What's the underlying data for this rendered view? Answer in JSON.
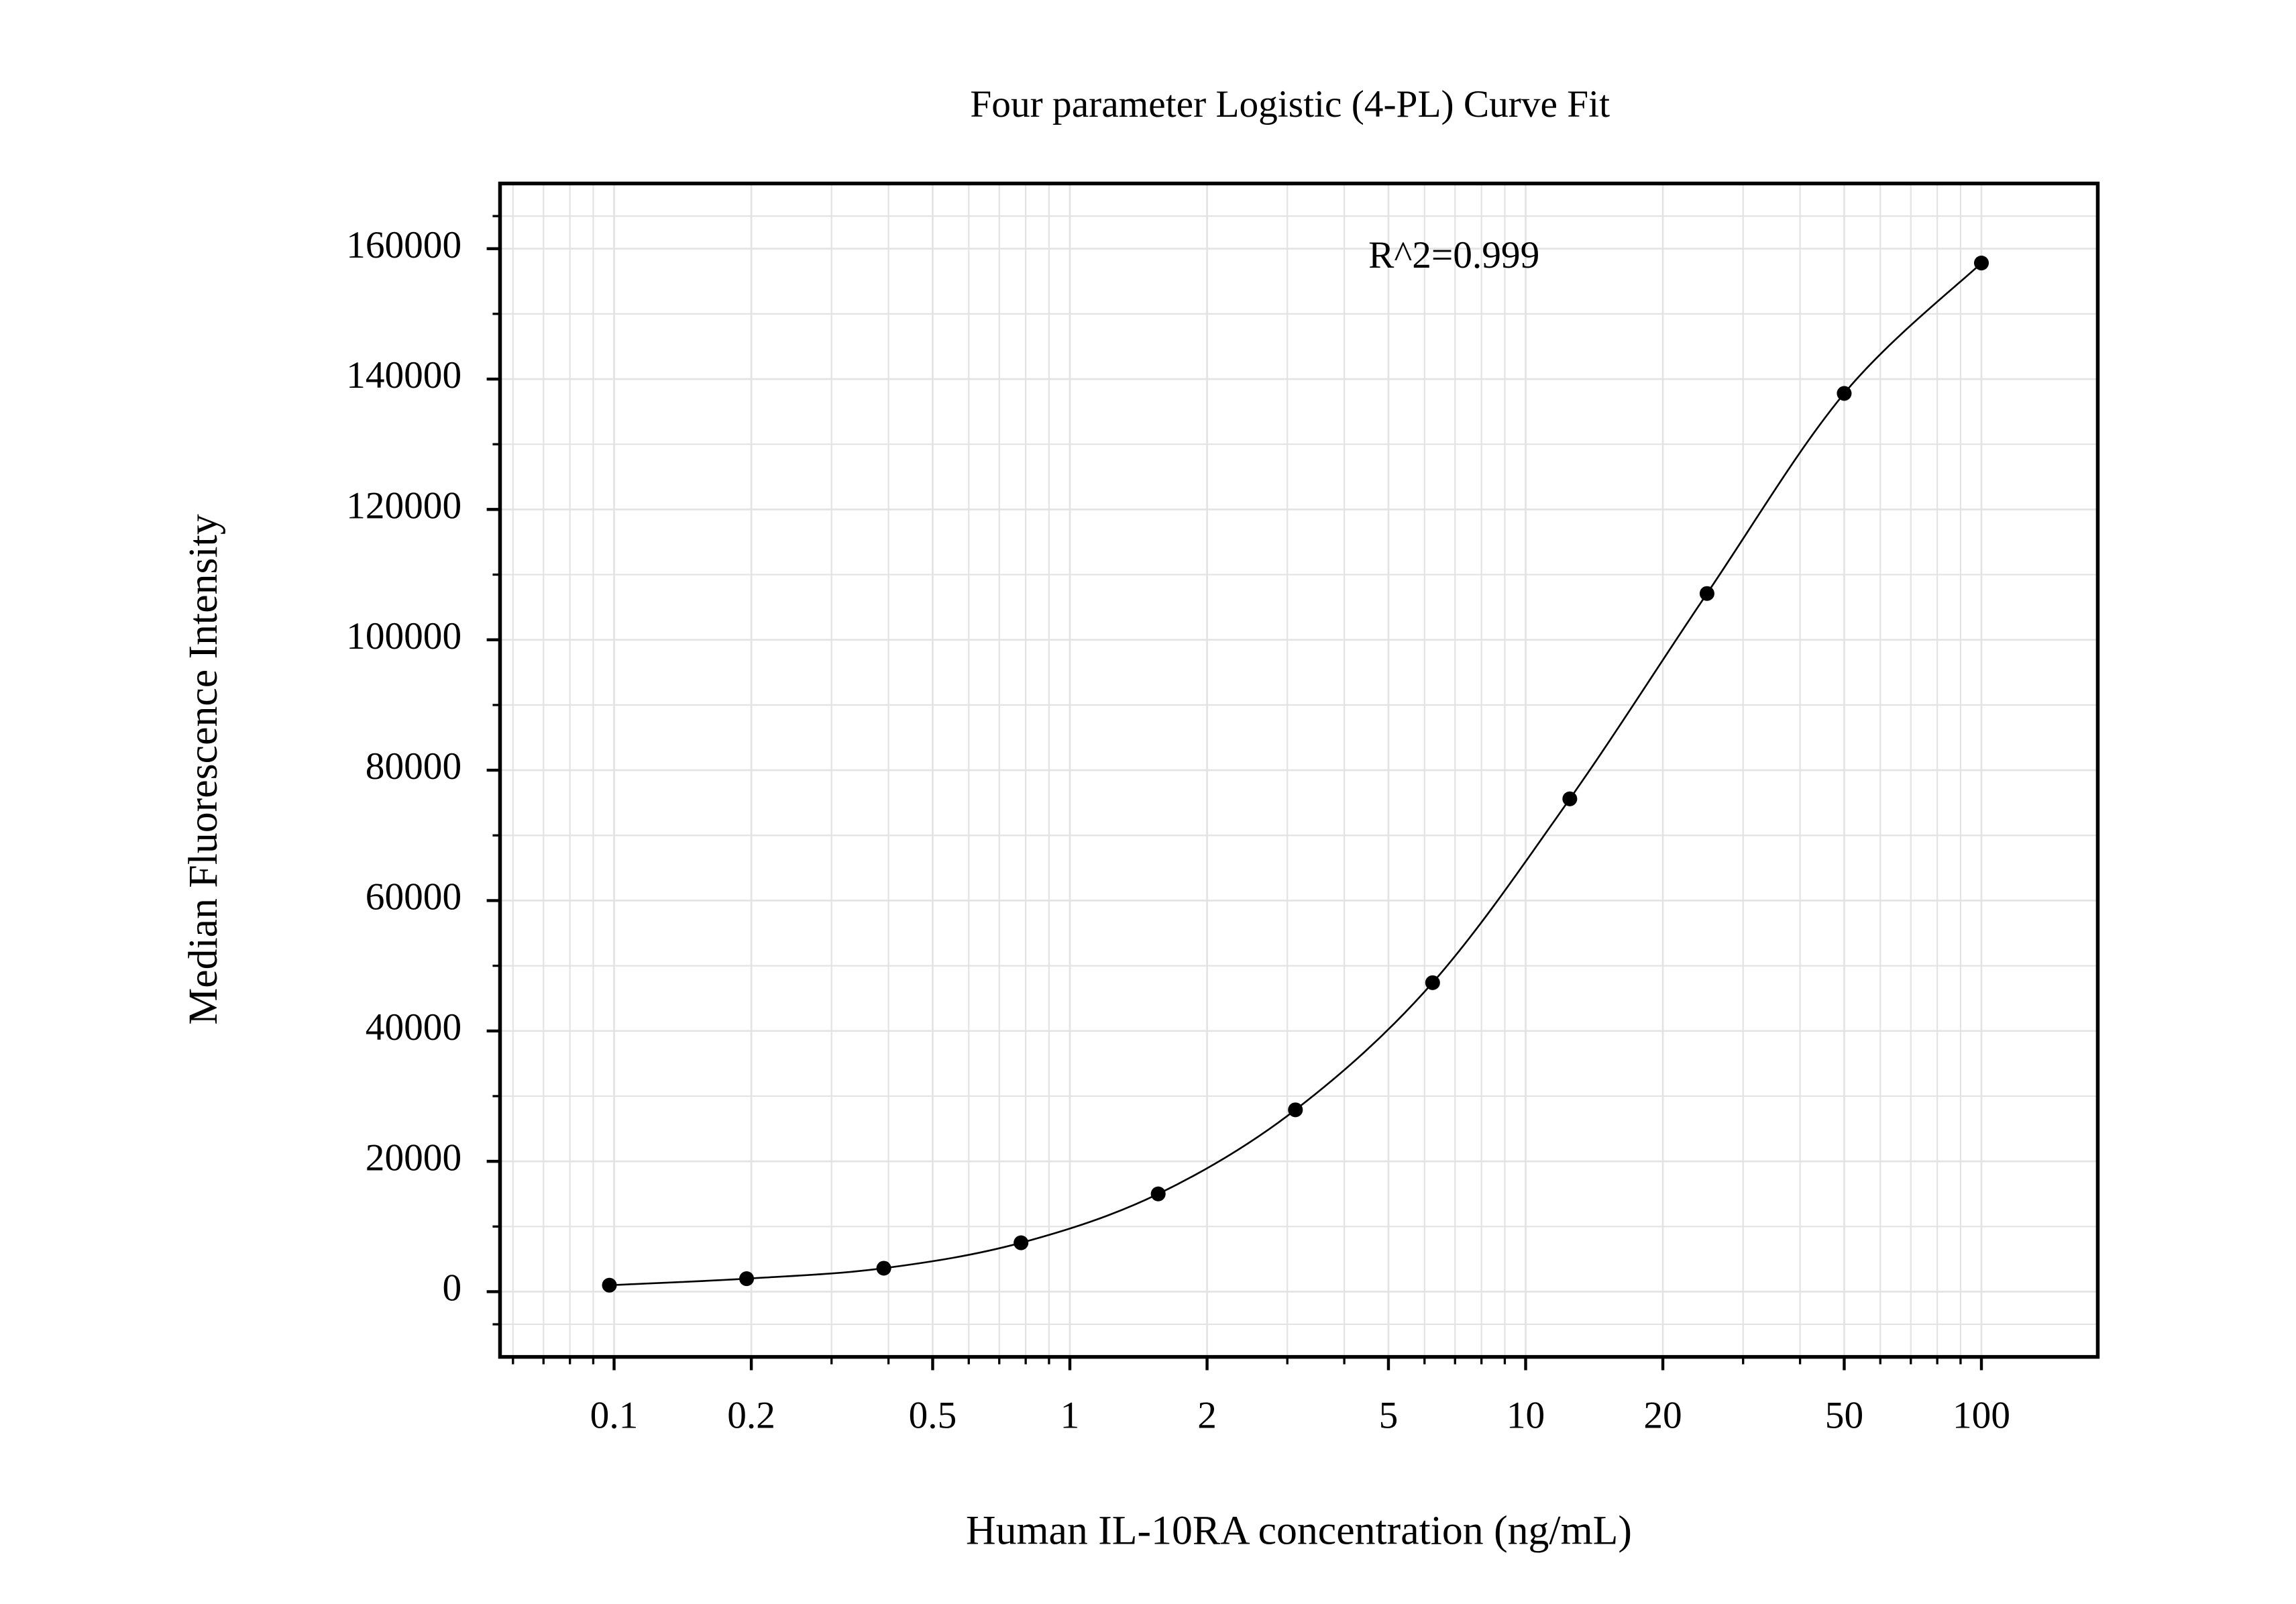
{
  "chart_data": {
    "type": "scatter",
    "title": "Four parameter Logistic (4-PL) Curve Fit",
    "x_label": "Human IL-10RA concentration (ng/mL)",
    "y_label": "Median Fluorescence Intensity",
    "annotation": "R^2=0.999",
    "x_log": true,
    "grid": true,
    "color": "#000000",
    "x": [
      0.09765625,
      0.1953125,
      0.390625,
      0.78125,
      1.5625,
      3.125,
      6.25,
      12.5,
      25,
      50,
      100
    ],
    "values": [
      1000,
      2000,
      3600,
      7500,
      15000,
      27900,
      47400,
      75600,
      107100,
      137800,
      157800
    ],
    "xlim": [
      0.0562,
      180
    ],
    "ylim": [
      -10000,
      170000
    ],
    "xticks": [
      0.1,
      0.2,
      0.5,
      1,
      2,
      5,
      10,
      20,
      50,
      100
    ],
    "yticks": [
      0,
      20000,
      40000,
      60000,
      80000,
      100000,
      120000,
      140000,
      160000
    ]
  }
}
